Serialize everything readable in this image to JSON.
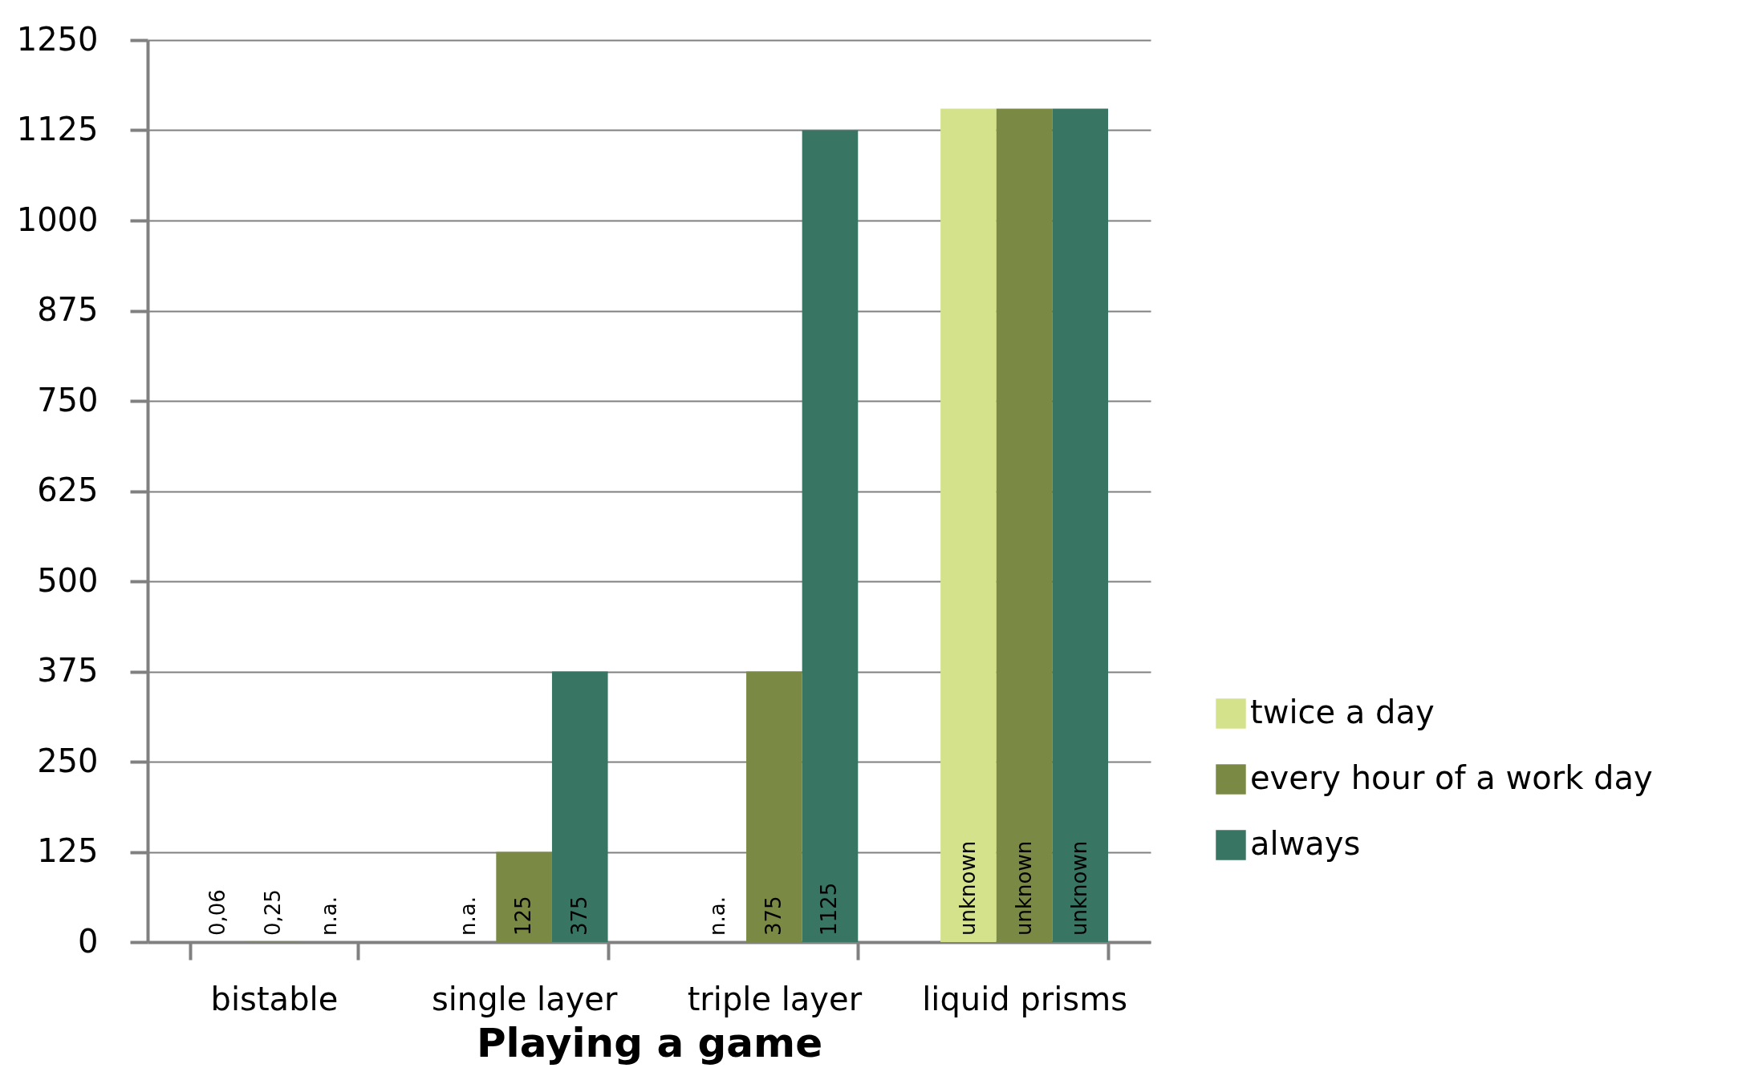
{
  "chart_data": {
    "type": "bar",
    "xlabel": "Playing a game",
    "categories": [
      "bistable",
      "single layer",
      "triple layer",
      "liquid prisms"
    ],
    "series": [
      {
        "name": "twice a day",
        "color": "#d4e28c",
        "values": [
          0.06,
          null,
          null,
          1155
        ],
        "value_labels": [
          "0,06",
          "n.a.",
          "n.a.",
          "unknown"
        ]
      },
      {
        "name": "every hour of a work day",
        "color": "#7a8a44",
        "values": [
          0.25,
          125,
          375,
          1155
        ],
        "value_labels": [
          "0,25",
          "125",
          "375",
          "unknown"
        ]
      },
      {
        "name": "always",
        "color": "#387563",
        "values": [
          null,
          375,
          1125,
          1155
        ],
        "value_labels": [
          "n.a.",
          "375",
          "1125",
          "unknown"
        ]
      }
    ],
    "ylim": [
      0,
      1250
    ],
    "yticks": [
      0,
      125,
      250,
      375,
      500,
      625,
      750,
      875,
      1000,
      1125,
      1250
    ],
    "grid": "y",
    "legend": "right"
  }
}
